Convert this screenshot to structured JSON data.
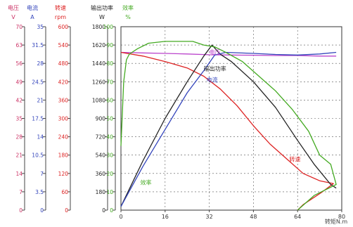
{
  "chart_data": {
    "type": "line",
    "xlabel": "转矩N.m",
    "xlim": [
      0,
      80
    ],
    "x_ticks": [
      "0",
      "16",
      "32",
      "48",
      "64",
      "80"
    ],
    "grid": true,
    "axes": [
      {
        "key": "voltage",
        "label": "电压",
        "unit": "V",
        "color": "#cc3366",
        "ticks": [
          "70",
          "63",
          "56",
          "49",
          "42",
          "35",
          "28",
          "21",
          "14",
          "7",
          "0"
        ],
        "max": 70
      },
      {
        "key": "current",
        "label": "电流",
        "unit": "A",
        "color": "#3344bb",
        "ticks": [
          "35",
          "31.5",
          "28",
          "24.5",
          "21",
          "17.5",
          "14",
          "10.5",
          "7",
          "3.5",
          "0"
        ],
        "max": 35
      },
      {
        "key": "speed",
        "label": "转速",
        "unit": "rpm",
        "color": "#dd2222",
        "ticks": [
          "600",
          "540",
          "480",
          "420",
          "360",
          "300",
          "240",
          "180",
          "120",
          "60",
          "0"
        ],
        "max": 600
      },
      {
        "key": "power",
        "label": "输出功率",
        "unit": "W",
        "color": "#222222",
        "ticks": [
          "1800",
          "1620",
          "1440",
          "1260",
          "1080",
          "900",
          "720",
          "540",
          "360",
          "180",
          "0"
        ],
        "max": 1800
      },
      {
        "key": "efficiency",
        "label": "效率",
        "unit": "%",
        "color": "#44aa22",
        "ticks": [
          "100",
          "90",
          "80",
          "70",
          "60",
          "50",
          "40",
          "30",
          "20",
          "10",
          "0"
        ],
        "max": 100
      }
    ],
    "series": [
      {
        "name": "电压",
        "axis": "voltage",
        "color": "#bb44cc",
        "points": [
          [
            0,
            60.2
          ],
          [
            8,
            60.0
          ],
          [
            16,
            59.8
          ],
          [
            24,
            59.6
          ],
          [
            32,
            59.3
          ],
          [
            40,
            59.2
          ],
          [
            48,
            59.1
          ],
          [
            56,
            59.0
          ],
          [
            64,
            59.0
          ],
          [
            72,
            58.8
          ],
          [
            78,
            58.8
          ]
        ]
      },
      {
        "name": "转速",
        "axis": "speed",
        "color": "#dd2222",
        "points": [
          [
            0,
            516
          ],
          [
            8,
            504
          ],
          [
            16,
            486
          ],
          [
            24,
            465
          ],
          [
            30,
            438
          ],
          [
            36,
            396
          ],
          [
            42,
            342
          ],
          [
            48,
            276
          ],
          [
            54,
            216
          ],
          [
            60,
            168
          ],
          [
            66,
            120
          ],
          [
            72,
            96
          ],
          [
            77,
            87
          ],
          [
            73,
            60
          ],
          [
            66,
            18
          ],
          [
            64,
            0
          ]
        ]
      },
      {
        "name": "输出功率",
        "axis": "power",
        "color": "#222222",
        "points": [
          [
            0,
            36
          ],
          [
            8,
            486
          ],
          [
            16,
            900
          ],
          [
            24,
            1260
          ],
          [
            30,
            1512
          ],
          [
            33,
            1620
          ],
          [
            36,
            1530
          ],
          [
            40,
            1458
          ],
          [
            48,
            1260
          ],
          [
            56,
            1008
          ],
          [
            64,
            684
          ],
          [
            70,
            450
          ],
          [
            76,
            252
          ],
          [
            78,
            216
          ]
        ]
      },
      {
        "name": "电流",
        "axis": "current",
        "color": "#3344bb",
        "points": [
          [
            0,
            0.7
          ],
          [
            8,
            8.4
          ],
          [
            16,
            15.4
          ],
          [
            24,
            22.4
          ],
          [
            30,
            26.6
          ],
          [
            34,
            29.6
          ],
          [
            38,
            30.1
          ],
          [
            48,
            29.9
          ],
          [
            56,
            29.7
          ],
          [
            64,
            29.6
          ],
          [
            72,
            29.8
          ],
          [
            78,
            30.1
          ]
        ]
      },
      {
        "name": "效率",
        "axis": "efficiency",
        "color": "#44aa22",
        "points": [
          [
            0,
            35
          ],
          [
            1,
            70
          ],
          [
            2,
            82
          ],
          [
            3,
            85
          ],
          [
            4,
            86
          ],
          [
            6,
            88
          ],
          [
            10,
            91
          ],
          [
            16,
            92
          ],
          [
            22,
            92
          ],
          [
            26,
            92
          ],
          [
            30,
            90
          ],
          [
            34,
            89
          ],
          [
            38,
            86
          ],
          [
            44,
            81
          ],
          [
            50,
            73
          ],
          [
            56,
            65
          ],
          [
            62,
            55
          ],
          [
            68,
            43
          ],
          [
            72,
            30
          ],
          [
            76,
            25
          ],
          [
            78,
            14
          ],
          [
            70,
            8
          ],
          [
            64,
            0
          ]
        ]
      }
    ],
    "annotations": [
      {
        "text": "电压",
        "series": "电压",
        "at": [
          32,
          59.5
        ],
        "color": "#bb44cc"
      },
      {
        "text": "输出功率",
        "series": "输出功率",
        "at": [
          30,
          1370
        ],
        "color": "#222222"
      },
      {
        "text": "电流",
        "series": "电流",
        "at": [
          31,
          24.5
        ],
        "color": "#3344bb"
      },
      {
        "text": "效率",
        "series": "效率",
        "at": [
          7,
          14
        ],
        "color": "#44aa22"
      },
      {
        "text": "转速",
        "series": "转速",
        "at": [
          61,
          160
        ],
        "color": "#dd2222"
      }
    ]
  }
}
